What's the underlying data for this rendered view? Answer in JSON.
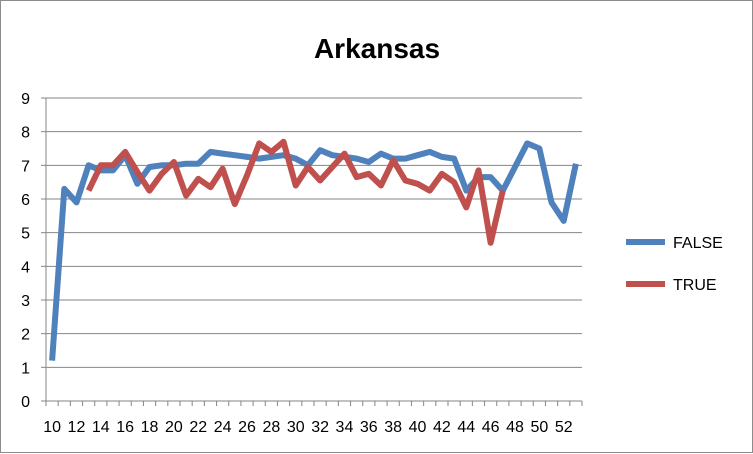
{
  "chart_data": {
    "type": "line",
    "title": "Arkansas",
    "xlabel": "",
    "ylabel": "",
    "ylim": [
      0,
      9
    ],
    "y_ticks": [
      0,
      1,
      2,
      3,
      4,
      5,
      6,
      7,
      8,
      9
    ],
    "x_range": [
      10,
      53
    ],
    "x_tick_labels": [
      10,
      12,
      14,
      16,
      18,
      20,
      22,
      24,
      26,
      28,
      30,
      32,
      34,
      36,
      38,
      40,
      42,
      44,
      46,
      48,
      50,
      52
    ],
    "grid": "horizontal",
    "legend_position": "right",
    "series": [
      {
        "name": "FALSE",
        "color": "#4f81bd",
        "points": [
          [
            10,
            1.2
          ],
          [
            11,
            6.3
          ],
          [
            12,
            5.9
          ],
          [
            13,
            7.0
          ],
          [
            14,
            6.85
          ],
          [
            15,
            6.85
          ],
          [
            16,
            7.3
          ],
          [
            17,
            6.45
          ],
          [
            18,
            6.95
          ],
          [
            19,
            7.0
          ],
          [
            20,
            7.0
          ],
          [
            21,
            7.05
          ],
          [
            22,
            7.05
          ],
          [
            23,
            7.4
          ],
          [
            24,
            7.35
          ],
          [
            25,
            7.3
          ],
          [
            26,
            7.25
          ],
          [
            27,
            7.2
          ],
          [
            28,
            7.25
          ],
          [
            29,
            7.3
          ],
          [
            30,
            7.2
          ],
          [
            31,
            7.0
          ],
          [
            32,
            7.45
          ],
          [
            33,
            7.3
          ],
          [
            34,
            7.25
          ],
          [
            35,
            7.2
          ],
          [
            36,
            7.1
          ],
          [
            37,
            7.35
          ],
          [
            38,
            7.2
          ],
          [
            39,
            7.2
          ],
          [
            40,
            7.3
          ],
          [
            41,
            7.4
          ],
          [
            42,
            7.25
          ],
          [
            43,
            7.2
          ],
          [
            44,
            6.25
          ],
          [
            45,
            6.65
          ],
          [
            46,
            6.65
          ],
          [
            47,
            6.25
          ],
          [
            48,
            6.95
          ],
          [
            49,
            7.65
          ],
          [
            50,
            7.5
          ],
          [
            51,
            5.9
          ],
          [
            52,
            5.35
          ],
          [
            53,
            7.05
          ]
        ]
      },
      {
        "name": "TRUE",
        "color": "#c0504d",
        "points": [
          [
            13,
            6.25
          ],
          [
            14,
            7.0
          ],
          [
            15,
            7.0
          ],
          [
            16,
            7.4
          ],
          [
            17,
            6.8
          ],
          [
            18,
            6.25
          ],
          [
            19,
            6.75
          ],
          [
            20,
            7.1
          ],
          [
            21,
            6.1
          ],
          [
            22,
            6.6
          ],
          [
            23,
            6.35
          ],
          [
            24,
            6.9
          ],
          [
            25,
            5.85
          ],
          [
            26,
            6.7
          ],
          [
            27,
            7.65
          ],
          [
            28,
            7.4
          ],
          [
            29,
            7.7
          ],
          [
            30,
            6.4
          ],
          [
            31,
            6.95
          ],
          [
            32,
            6.55
          ],
          [
            33,
            6.95
          ],
          [
            34,
            7.35
          ],
          [
            35,
            6.65
          ],
          [
            36,
            6.75
          ],
          [
            37,
            6.4
          ],
          [
            38,
            7.15
          ],
          [
            39,
            6.55
          ],
          [
            40,
            6.45
          ],
          [
            41,
            6.25
          ],
          [
            42,
            6.75
          ],
          [
            43,
            6.5
          ],
          [
            44,
            5.75
          ],
          [
            45,
            6.85
          ],
          [
            46,
            4.7
          ],
          [
            47,
            6.25
          ]
        ]
      }
    ]
  }
}
